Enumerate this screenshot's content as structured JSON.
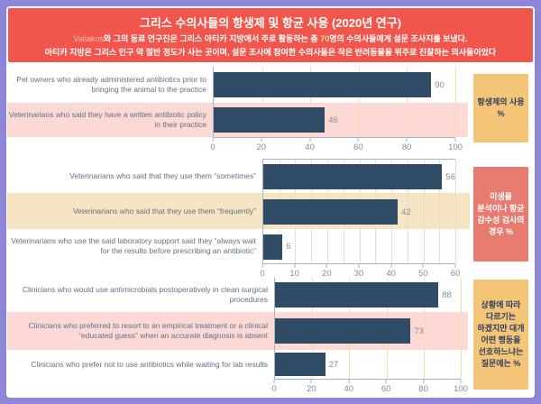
{
  "header": {
    "title": "그리스 수의사들의 항생제 및 항균 사용 (2020년 연구)",
    "subtitle_line1": {
      "author": "Valiakos",
      "text1": "와 그의 동료 연구진은 그리스 아티카 지방에서 주로 활동하는 총 ",
      "count": "70",
      "text2": "명의 수의사들에게 설문 조사지를 보냈다."
    },
    "subtitle_line2": "아티카 지방은 그리스 인구 약 절반 정도가 사는 곳이며, 설문 조사에 참여한 수의사들은 작은 반려동물을 위주로 진찰하는 의사들이었다"
  },
  "chart_data": [
    {
      "type": "bar",
      "orientation": "horizontal",
      "side_label": "항생제의 사용 %",
      "categories": [
        "Pet owners who already administered antibiotics prior to bringing the animal to the practice",
        "Veterinarians who said they have a written antibiotic policy in their practice"
      ],
      "values": [
        90,
        46
      ],
      "xlim": [
        0,
        100
      ],
      "ticks": [
        0,
        20,
        40,
        60,
        80,
        100
      ],
      "gridline_step": 20,
      "highlighted_row": 1,
      "unit": "%"
    },
    {
      "type": "bar",
      "orientation": "horizontal",
      "side_label": "미생물 분석이나 항균 감수성 검사의 경우 %",
      "categories": [
        "Veterinarians who said that they use them “sometimes”",
        "Veterinarians who said that they use them “frequently”",
        "Veterinarians who use the said laboratory support said they “always wait for the results before prescribing an antibiotic”"
      ],
      "values": [
        56,
        42,
        6
      ],
      "xlim": [
        0,
        60
      ],
      "ticks": [
        0,
        10,
        20,
        30,
        40,
        50,
        60
      ],
      "gridline_step": 5,
      "highlighted_row": 1,
      "unit": "%"
    },
    {
      "type": "bar",
      "orientation": "horizontal",
      "side_label": "상황에 따라 다르기는 하겠지만 대개 어떤 행동을 선호하느냐는 질문에는 %",
      "categories": [
        "Clinicians who would use antimicrobials postoperatively in clean surgical procedures",
        "Clinicians who preferred to resort to an empirical treatment or a clinical “educated guess” when an accurate diagnosis is absent",
        "Clinicians who prefer not to use antibiotics while waiting for lab results"
      ],
      "values": [
        88,
        73,
        27
      ],
      "xlim": [
        0,
        100
      ],
      "ticks": [
        0,
        20,
        40,
        60,
        80,
        100
      ],
      "gridline_step": 20,
      "highlighted_row": 1,
      "unit": "%"
    }
  ],
  "colors": {
    "frame": "#8c85d9",
    "banner": "#f0564c",
    "bar": "#2f4b66",
    "hl_pink": "#fcd9d4",
    "hl_cream": "#f6e5c2",
    "box_gold": "#f4c577",
    "box_salmon": "#e87b70",
    "navy": "#2d3e63",
    "grid_orange": "#f8dcae",
    "grid_pink": "#f8d5d1"
  }
}
